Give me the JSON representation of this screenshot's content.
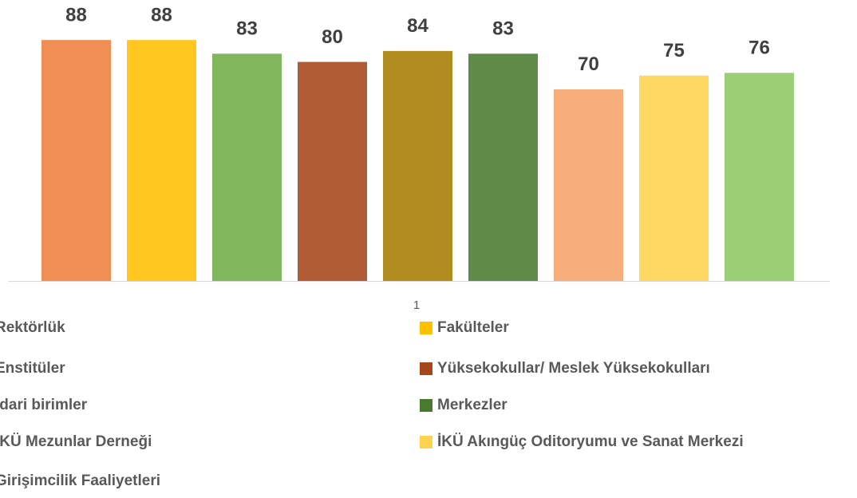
{
  "chart_data": {
    "type": "bar",
    "categories": [
      "1"
    ],
    "series": [
      {
        "name": "Rektörlük",
        "color": "#f07f3c",
        "values": [
          88
        ]
      },
      {
        "name": "Fakülteler",
        "color": "#ffc000",
        "values": [
          88
        ]
      },
      {
        "name": "Enstitüler",
        "color": "#6fac46",
        "values": [
          83
        ]
      },
      {
        "name": "Yüksekokullar/ Meslek Yüksekokulları",
        "color": "#a5471b",
        "values": [
          80
        ]
      },
      {
        "name": "İdari birimler",
        "color": "#a67c00",
        "values": [
          84
        ]
      },
      {
        "name": "Merkezler",
        "color": "#4a7a2e",
        "values": [
          83
        ]
      },
      {
        "name": "İKÜ Mezunlar Derneği",
        "color": "#f4a26a",
        "values": [
          70
        ]
      },
      {
        "name": "İKÜ Akıngüç Oditoryumu ve Sanat Merkezi",
        "color": "#ffd34f",
        "values": [
          75
        ]
      },
      {
        "name": "Girişimcilik Faaliyetleri",
        "color": "#8fc866",
        "values": [
          76
        ]
      }
    ]
  }
}
